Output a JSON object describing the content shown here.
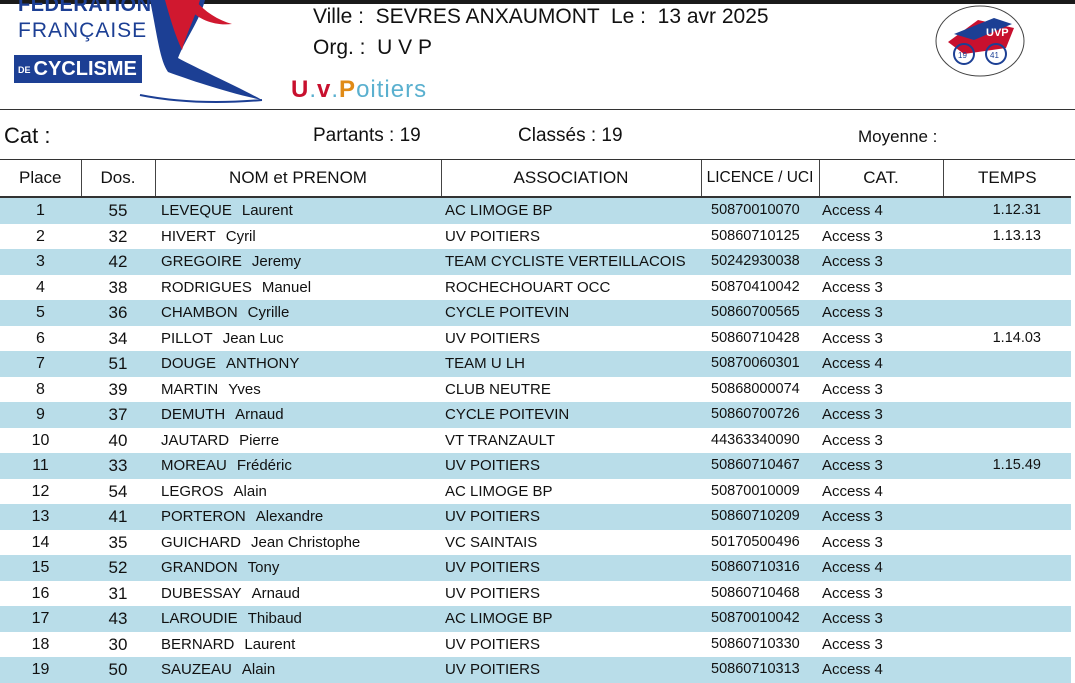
{
  "logo": {
    "line1": "FEDERATION",
    "line2": "FRANÇAISE",
    "line3_prefix": "DE",
    "line3": "CYCLISME"
  },
  "header": {
    "ville_line": "Ville :  SEVRES ANXAUMONT  Le :  13 avr 2025",
    "org_line": "Org. :  U V P",
    "club_script": {
      "u": "U",
      "dot1": ".",
      "v": "v",
      "dot2": ".",
      "p": "P",
      "rest": "oitiers"
    },
    "uvp_logo_text": "UVP",
    "uvp_logo_year_left": "19",
    "uvp_logo_year_right": "41"
  },
  "summary": {
    "cat_label": "Cat :",
    "partants": "Partants : 19",
    "classes": "Classés : 19",
    "moyenne": "Moyenne :"
  },
  "columns": [
    "Place",
    "Dos.",
    "NOM et PRENOM",
    "ASSOCIATION",
    "LICENCE / UCI",
    "CAT.",
    "TEMPS"
  ],
  "rows": [
    {
      "place": "1",
      "dos": "55",
      "nom": "LEVEQUE",
      "prenom": "Laurent",
      "assoc": "AC LIMOGE BP",
      "licence": "50870010070",
      "cat": "Access 4",
      "temps": "1.12.31"
    },
    {
      "place": "2",
      "dos": "32",
      "nom": "HIVERT",
      "prenom": "Cyril",
      "assoc": "UV POITIERS",
      "licence": "50860710125",
      "cat": "Access 3",
      "temps": "1.13.13"
    },
    {
      "place": "3",
      "dos": "42",
      "nom": "GREGOIRE",
      "prenom": "Jeremy",
      "assoc": "TEAM CYCLISTE VERTEILLACOIS",
      "licence": "50242930038",
      "cat": "Access 3",
      "temps": ""
    },
    {
      "place": "4",
      "dos": "38",
      "nom": "RODRIGUES",
      "prenom": "Manuel",
      "assoc": "ROCHECHOUART OCC",
      "licence": "50870410042",
      "cat": "Access 3",
      "temps": ""
    },
    {
      "place": "5",
      "dos": "36",
      "nom": "CHAMBON",
      "prenom": "Cyrille",
      "assoc": "CYCLE POITEVIN",
      "licence": "50860700565",
      "cat": "Access 3",
      "temps": ""
    },
    {
      "place": "6",
      "dos": "34",
      "nom": "PILLOT",
      "prenom": "Jean Luc",
      "assoc": "UV POITIERS",
      "licence": "50860710428",
      "cat": "Access 3",
      "temps": "1.14.03"
    },
    {
      "place": "7",
      "dos": "51",
      "nom": "DOUGE",
      "prenom": "ANTHONY",
      "assoc": "TEAM U LH",
      "licence": "50870060301",
      "cat": "Access 4",
      "temps": ""
    },
    {
      "place": "8",
      "dos": "39",
      "nom": "MARTIN",
      "prenom": "Yves",
      "assoc": "CLUB NEUTRE",
      "licence": "50868000074",
      "cat": "Access 3",
      "temps": ""
    },
    {
      "place": "9",
      "dos": "37",
      "nom": "DEMUTH",
      "prenom": "Arnaud",
      "assoc": "CYCLE POITEVIN",
      "licence": "50860700726",
      "cat": "Access 3",
      "temps": ""
    },
    {
      "place": "10",
      "dos": "40",
      "nom": "JAUTARD",
      "prenom": "Pierre",
      "assoc": "VT TRANZAULT",
      "licence": "44363340090",
      "cat": "Access 3",
      "temps": ""
    },
    {
      "place": "11",
      "dos": "33",
      "nom": "MOREAU",
      "prenom": "Frédéric",
      "assoc": "UV POITIERS",
      "licence": "50860710467",
      "cat": "Access 3",
      "temps": "1.15.49"
    },
    {
      "place": "12",
      "dos": "54",
      "nom": "LEGROS",
      "prenom": "Alain",
      "assoc": "AC LIMOGE BP",
      "licence": "50870010009",
      "cat": "Access 4",
      "temps": ""
    },
    {
      "place": "13",
      "dos": "41",
      "nom": "PORTERON",
      "prenom": "Alexandre",
      "assoc": "UV POITIERS",
      "licence": "50860710209",
      "cat": "Access 3",
      "temps": ""
    },
    {
      "place": "14",
      "dos": "35",
      "nom": "GUICHARD",
      "prenom": "Jean Christophe",
      "assoc": "VC SAINTAIS",
      "licence": "50170500496",
      "cat": "Access 3",
      "temps": ""
    },
    {
      "place": "15",
      "dos": "52",
      "nom": "GRANDON",
      "prenom": "Tony",
      "assoc": "UV POITIERS",
      "licence": "50860710316",
      "cat": "Access 4",
      "temps": ""
    },
    {
      "place": "16",
      "dos": "31",
      "nom": "DUBESSAY",
      "prenom": "Arnaud",
      "assoc": "UV POITIERS",
      "licence": "50860710468",
      "cat": "Access 3",
      "temps": ""
    },
    {
      "place": "17",
      "dos": "43",
      "nom": "LAROUDIE",
      "prenom": "Thibaud",
      "assoc": "AC LIMOGE BP",
      "licence": "50870010042",
      "cat": "Access 3",
      "temps": ""
    },
    {
      "place": "18",
      "dos": "30",
      "nom": "BERNARD",
      "prenom": "Laurent",
      "assoc": "UV POITIERS",
      "licence": "50860710330",
      "cat": "Access 3",
      "temps": ""
    },
    {
      "place": "19",
      "dos": "50",
      "nom": "SAUZEAU",
      "prenom": "Alain",
      "assoc": "UV POITIERS",
      "licence": "50860710313",
      "cat": "Access 4",
      "temps": ""
    }
  ],
  "colors": {
    "stripe": "#b9dde9",
    "ffc_blue": "#1c3f94",
    "uvp_red": "#c8102e"
  }
}
